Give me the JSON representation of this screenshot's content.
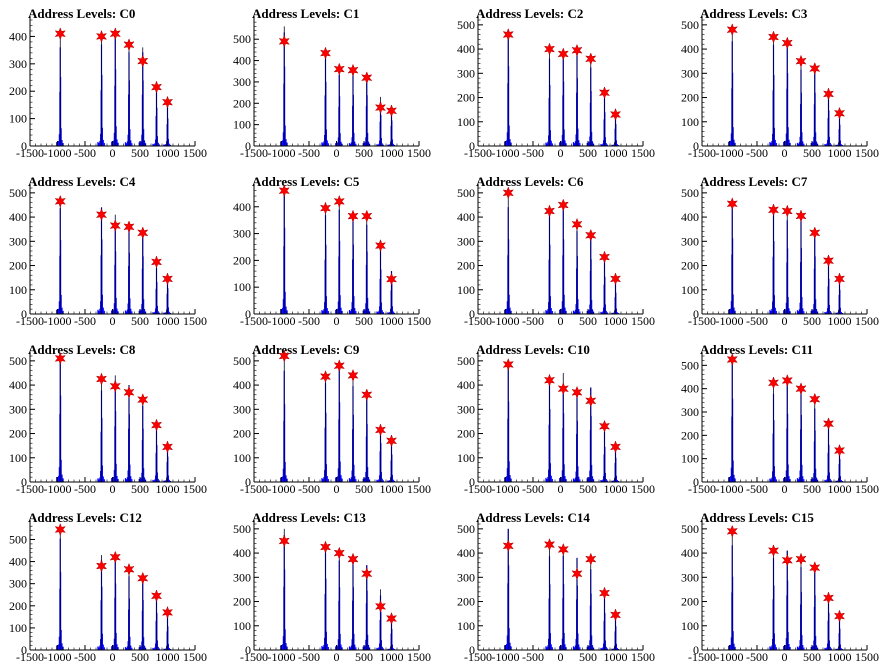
{
  "colors": {
    "histogram": "#0000ff",
    "marker": "#ff0000",
    "marker_edge": "#aa0000",
    "axis": "#000000"
  },
  "axis": {
    "xlim": [
      -1500,
      1500
    ],
    "x_ticks": [
      -1500,
      -1000,
      -500,
      0,
      500,
      1000,
      1500
    ],
    "x_tick_labels": [
      "-1500",
      "-1000",
      "-500",
      "0",
      "500",
      "1000",
      "1500"
    ],
    "level_positions": [
      -950,
      -200,
      50,
      300,
      550,
      800,
      1000
    ]
  },
  "chart_data": [
    {
      "type": "bar",
      "title": "Address Levels: C0",
      "ylim": [
        0,
        460
      ],
      "y_ticks": [
        0,
        100,
        200,
        300,
        400
      ],
      "x": [
        -950,
        -200,
        50,
        300,
        550,
        800,
        1000
      ],
      "peaks": [
        410,
        400,
        410,
        370,
        310,
        215,
        160
      ],
      "max_bars": [
        400,
        390,
        400,
        380,
        360,
        200,
        160
      ]
    },
    {
      "type": "bar",
      "title": "Address Levels: C1",
      "ylim": [
        0,
        590
      ],
      "y_ticks": [
        0,
        100,
        200,
        300,
        400,
        500
      ],
      "x": [
        -950,
        -200,
        50,
        300,
        550,
        800,
        1000
      ],
      "peaks": [
        490,
        435,
        360,
        355,
        320,
        180,
        165
      ],
      "max_bars": [
        560,
        430,
        370,
        360,
        340,
        230,
        180
      ]
    },
    {
      "type": "bar",
      "title": "Address Levels: C2",
      "ylim": [
        0,
        520
      ],
      "y_ticks": [
        0,
        100,
        200,
        300,
        400,
        500
      ],
      "x": [
        -950,
        -200,
        50,
        300,
        550,
        800,
        1000
      ],
      "peaks": [
        460,
        400,
        380,
        395,
        360,
        220,
        130
      ],
      "max_bars": [
        470,
        400,
        400,
        400,
        360,
        210,
        130
      ]
    },
    {
      "type": "bar",
      "title": "Address Levels: C3",
      "ylim": [
        0,
        520
      ],
      "y_ticks": [
        0,
        100,
        200,
        300,
        400,
        500
      ],
      "x": [
        -950,
        -200,
        50,
        300,
        550,
        800,
        1000
      ],
      "peaks": [
        480,
        450,
        425,
        350,
        320,
        215,
        135
      ],
      "max_bars": [
        480,
        440,
        430,
        350,
        330,
        210,
        140
      ]
    },
    {
      "type": "bar",
      "title": "Address Levels: C4",
      "ylim": [
        0,
        520
      ],
      "y_ticks": [
        0,
        100,
        200,
        300,
        400,
        500
      ],
      "x": [
        -950,
        -200,
        50,
        300,
        550,
        800,
        1000
      ],
      "peaks": [
        465,
        410,
        365,
        360,
        335,
        215,
        145
      ],
      "max_bars": [
        460,
        440,
        410,
        380,
        340,
        210,
        160
      ]
    },
    {
      "type": "bar",
      "title": "Address Levels: C5",
      "ylim": [
        0,
        470
      ],
      "y_ticks": [
        0,
        100,
        200,
        300,
        400
      ],
      "x": [
        -950,
        -200,
        50,
        300,
        550,
        800,
        1000
      ],
      "peaks": [
        460,
        395,
        420,
        365,
        365,
        255,
        130
      ],
      "max_bars": [
        460,
        410,
        410,
        370,
        370,
        250,
        160
      ]
    },
    {
      "type": "bar",
      "title": "Address Levels: C6",
      "ylim": [
        0,
        520
      ],
      "y_ticks": [
        0,
        100,
        200,
        300,
        400,
        500
      ],
      "x": [
        -950,
        -200,
        50,
        300,
        550,
        800,
        1000
      ],
      "peaks": [
        500,
        425,
        450,
        370,
        325,
        235,
        145
      ],
      "max_bars": [
        490,
        430,
        440,
        380,
        340,
        220,
        140
      ]
    },
    {
      "type": "bar",
      "title": "Address Levels: C7",
      "ylim": [
        0,
        520
      ],
      "y_ticks": [
        0,
        100,
        200,
        300,
        400,
        500
      ],
      "x": [
        -950,
        -200,
        50,
        300,
        550,
        800,
        1000
      ],
      "peaks": [
        455,
        430,
        425,
        405,
        335,
        220,
        145
      ],
      "max_bars": [
        470,
        430,
        430,
        410,
        340,
        230,
        150
      ]
    },
    {
      "type": "bar",
      "title": "Address Levels: C8",
      "ylim": [
        0,
        520
      ],
      "y_ticks": [
        0,
        100,
        200,
        300,
        400,
        500
      ],
      "x": [
        -950,
        -200,
        50,
        300,
        550,
        800,
        1000
      ],
      "peaks": [
        510,
        425,
        395,
        370,
        340,
        235,
        145
      ],
      "max_bars": [
        510,
        420,
        440,
        400,
        350,
        230,
        150
      ]
    },
    {
      "type": "bar",
      "title": "Address Levels: C9",
      "ylim": [
        0,
        520
      ],
      "y_ticks": [
        0,
        100,
        200,
        300,
        400,
        500
      ],
      "x": [
        -950,
        -200,
        50,
        300,
        550,
        800,
        1000
      ],
      "peaks": [
        520,
        435,
        480,
        440,
        360,
        215,
        170
      ],
      "max_bars": [
        510,
        430,
        470,
        440,
        360,
        230,
        180
      ]
    },
    {
      "type": "bar",
      "title": "Address Levels: C10",
      "ylim": [
        0,
        520
      ],
      "y_ticks": [
        0,
        100,
        200,
        300,
        400,
        500
      ],
      "x": [
        -950,
        -200,
        50,
        300,
        550,
        800,
        1000
      ],
      "peaks": [
        485,
        420,
        385,
        370,
        335,
        230,
        145
      ],
      "max_bars": [
        500,
        430,
        450,
        380,
        390,
        230,
        150
      ]
    },
    {
      "type": "bar",
      "title": "Address Levels: C11",
      "ylim": [
        0,
        540
      ],
      "y_ticks": [
        0,
        100,
        200,
        300,
        400,
        500
      ],
      "x": [
        -950,
        -200,
        50,
        300,
        550,
        800,
        1000
      ],
      "peaks": [
        525,
        425,
        435,
        400,
        355,
        250,
        135
      ],
      "max_bars": [
        510,
        420,
        440,
        410,
        350,
        240,
        140
      ]
    },
    {
      "type": "bar",
      "title": "Address Levels: C12",
      "ylim": [
        0,
        570
      ],
      "y_ticks": [
        0,
        100,
        200,
        300,
        400,
        500
      ],
      "x": [
        -950,
        -200,
        50,
        300,
        550,
        800,
        1000
      ],
      "peaks": [
        545,
        380,
        420,
        365,
        325,
        245,
        170
      ],
      "max_bars": [
        560,
        430,
        430,
        370,
        340,
        240,
        170
      ]
    },
    {
      "type": "bar",
      "title": "Address Levels: C13",
      "ylim": [
        0,
        520
      ],
      "y_ticks": [
        0,
        100,
        200,
        300,
        400,
        500
      ],
      "x": [
        -950,
        -200,
        50,
        300,
        550,
        800,
        1000
      ],
      "peaks": [
        450,
        425,
        400,
        375,
        315,
        180,
        130
      ],
      "max_bars": [
        500,
        420,
        410,
        390,
        350,
        250,
        130
      ]
    },
    {
      "type": "bar",
      "title": "Address Levels: C14",
      "ylim": [
        0,
        520
      ],
      "y_ticks": [
        0,
        100,
        200,
        300,
        400,
        500
      ],
      "x": [
        -950,
        -200,
        50,
        300,
        550,
        800,
        1000
      ],
      "peaks": [
        430,
        435,
        415,
        315,
        375,
        235,
        145
      ],
      "max_bars": [
        500,
        430,
        410,
        380,
        370,
        230,
        140
      ]
    },
    {
      "type": "bar",
      "title": "Address Levels: C15",
      "ylim": [
        0,
        520
      ],
      "y_ticks": [
        0,
        100,
        200,
        300,
        400,
        500
      ],
      "x": [
        -950,
        -200,
        50,
        300,
        550,
        800,
        1000
      ],
      "peaks": [
        490,
        410,
        370,
        375,
        340,
        215,
        140
      ],
      "max_bars": [
        480,
        400,
        410,
        380,
        340,
        220,
        140
      ]
    }
  ]
}
